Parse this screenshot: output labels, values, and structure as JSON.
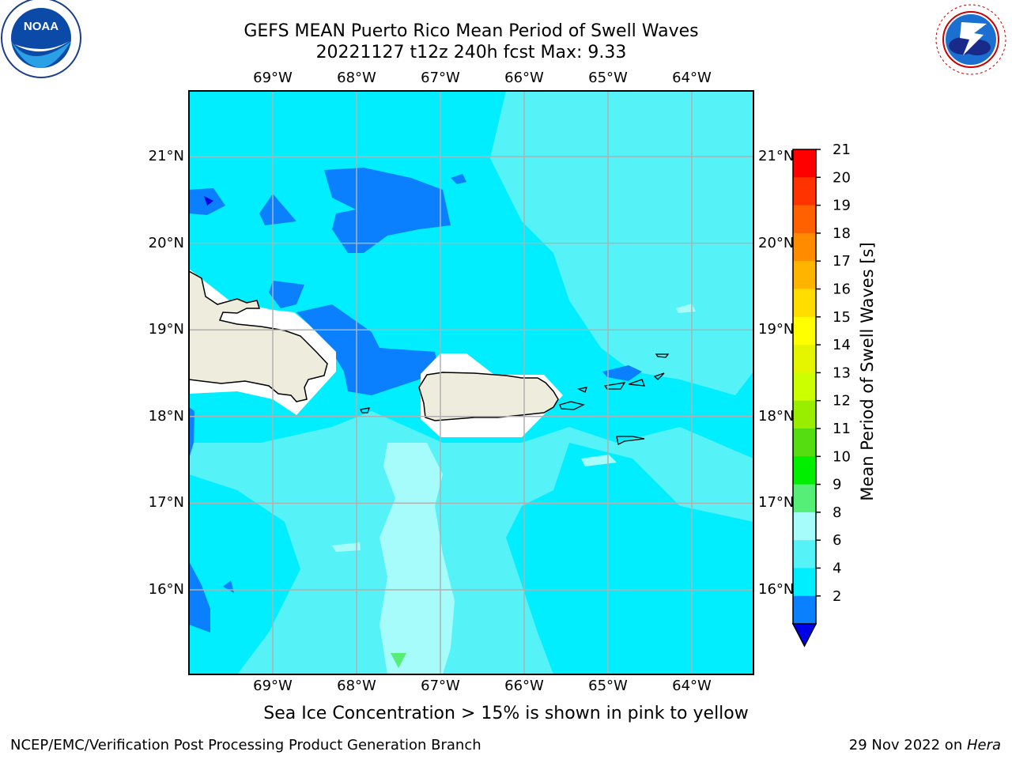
{
  "header": {
    "title_line1": "GEFS MEAN Puerto Rico Mean Period of Swell Waves",
    "title_line2": "20221127 t12z 240h fcst   Max: 9.33"
  },
  "logos": {
    "left": "NOAA",
    "left_ring_text": "NATIONAL OCEANIC AND ATMOSPHERIC ADMINISTRATION · U.S. DEPARTMENT OF COMMERCE",
    "right_ring_text": "NATIONAL WEATHER SERVICE"
  },
  "map": {
    "lon_labels": [
      "69°W",
      "68°W",
      "67°W",
      "66°W",
      "65°W",
      "64°W"
    ],
    "lat_labels": [
      "21°N",
      "20°N",
      "19°N",
      "18°N",
      "17°N",
      "16°N"
    ],
    "lon_values": [
      -69,
      -68,
      -67,
      -66,
      -65,
      -64
    ],
    "lat_values": [
      21,
      20,
      19,
      18,
      17,
      16
    ],
    "colors": {
      "land": "#eeecdc",
      "band_2_4": "#0a80ff",
      "band_4_6": "#00eeff",
      "band_6_8": "#55f3f7",
      "band_8_9": "#a6fbfb",
      "band_below_2": "#0000e6",
      "band_9_10": "#55ee77",
      "gridline": "#b0b0b0"
    }
  },
  "colorbar": {
    "label": "Mean Period of Swell Waves [s]",
    "ticks": [
      "21",
      "20",
      "19",
      "18",
      "17",
      "16",
      "15",
      "14",
      "13",
      "12",
      "11",
      "10",
      "9",
      "8",
      "6",
      "4",
      "2"
    ],
    "colors": [
      "#ff0000",
      "#ff3300",
      "#ff6000",
      "#ff8c00",
      "#ffb400",
      "#ffdd00",
      "#ffff00",
      "#e5f500",
      "#ccff00",
      "#99ee00",
      "#55dd11",
      "#00ee00",
      "#55ee77",
      "#a6fbfb",
      "#55f3f7",
      "#00eeff",
      "#0a80ff",
      "#0000e6"
    ]
  },
  "subtitle": "Sea Ice Concentration > 15% is shown in pink to yellow",
  "footer": {
    "left": "NCEP/EMC/Verification Post Processing Product Generation Branch",
    "right_date": "29 Nov 2022 on ",
    "right_machine": "Hera"
  }
}
